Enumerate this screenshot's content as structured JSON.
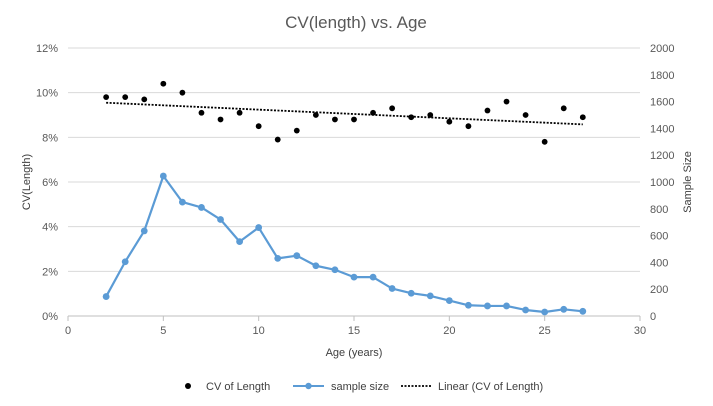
{
  "chart_data": {
    "type": "scatter",
    "title": "CV(length) vs. Age",
    "xlabel": "Age  (years)",
    "ylabel": "CV(Length)",
    "y2label": "Sample Size",
    "xlim": [
      0,
      30
    ],
    "ylim": [
      0,
      0.12
    ],
    "y2lim": [
      0,
      2000
    ],
    "xticks": [
      0,
      5,
      10,
      15,
      20,
      25,
      30
    ],
    "yticks": [
      0,
      0.02,
      0.04,
      0.06,
      0.08,
      0.1,
      0.12
    ],
    "y2ticks": [
      0,
      200,
      400,
      600,
      800,
      1000,
      1200,
      1400,
      1600,
      1800,
      2000
    ],
    "xtick_labels": [
      "0",
      "5",
      "10",
      "15",
      "20",
      "25",
      "30"
    ],
    "ytick_labels": [
      "0%",
      "2%",
      "4%",
      "6%",
      "8%",
      "10%",
      "12%"
    ],
    "y2tick_labels": [
      "0",
      "200",
      "400",
      "600",
      "800",
      "1000",
      "1200",
      "1400",
      "1600",
      "1800",
      "2000"
    ],
    "grid": "horizontal",
    "legend_position": "bottom",
    "series": [
      {
        "name": "CV of Length",
        "kind": "scatter",
        "axis": "left",
        "color": "#000000",
        "x": [
          2,
          3,
          4,
          5,
          6,
          7,
          8,
          9,
          10,
          11,
          12,
          13,
          14,
          15,
          16,
          17,
          18,
          19,
          20,
          21,
          22,
          23,
          24,
          25,
          26,
          27
        ],
        "y": [
          0.098,
          0.098,
          0.097,
          0.104,
          0.1,
          0.091,
          0.088,
          0.091,
          0.085,
          0.079,
          0.083,
          0.09,
          0.088,
          0.088,
          0.091,
          0.093,
          0.089,
          0.09,
          0.087,
          0.085,
          0.092,
          0.096,
          0.09,
          0.078,
          0.093,
          0.089
        ]
      },
      {
        "name": "sample size",
        "kind": "line-markers",
        "axis": "right",
        "color": "#5B9BD5",
        "x": [
          2,
          3,
          4,
          5,
          6,
          7,
          8,
          9,
          10,
          11,
          12,
          13,
          14,
          15,
          16,
          17,
          18,
          19,
          20,
          21,
          22,
          23,
          24,
          25,
          26,
          27
        ],
        "y": [
          145,
          405,
          635,
          1045,
          850,
          810,
          720,
          555,
          660,
          430,
          450,
          375,
          345,
          290,
          290,
          205,
          170,
          150,
          115,
          80,
          75,
          75,
          45,
          30,
          50,
          35
        ]
      },
      {
        "name": "Linear (CV of Length)",
        "kind": "trendline",
        "axis": "left",
        "color": "#000000",
        "x": [
          2,
          27
        ],
        "y": [
          0.0955,
          0.0858
        ]
      }
    ]
  }
}
